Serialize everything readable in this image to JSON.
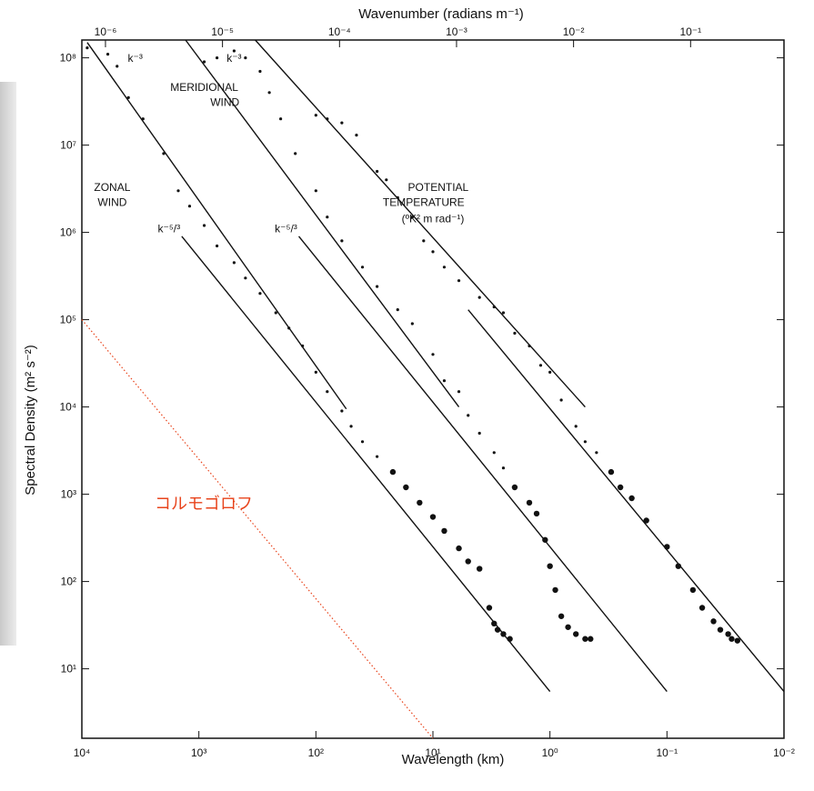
{
  "chart_data": {
    "type": "scatter",
    "title": "",
    "xlabel": "Wavelength (km)",
    "ylabel": "Spectral Density (m² s⁻²)",
    "x2label": "Wavenumber (radians m⁻¹)",
    "x_scale": "log",
    "x_direction": "decreasing",
    "xlim": [
      10000,
      0.01
    ],
    "y_scale": "log",
    "ylim": [
      1.6,
      160000000.0
    ],
    "x_ticks": [
      {
        "value": 10000,
        "label": "10⁴"
      },
      {
        "value": 1000,
        "label": "10³"
      },
      {
        "value": 100,
        "label": "10²"
      },
      {
        "value": 10,
        "label": "10¹"
      },
      {
        "value": 1,
        "label": "10⁰"
      },
      {
        "value": 0.1,
        "label": "10⁻¹"
      },
      {
        "value": 0.01,
        "label": "10⁻²"
      }
    ],
    "x2_ticks": [
      {
        "value": 1e-06,
        "label": "10⁻⁶"
      },
      {
        "value": 1e-05,
        "label": "10⁻⁵"
      },
      {
        "value": 0.0001,
        "label": "10⁻⁴"
      },
      {
        "value": 0.001,
        "label": "10⁻³"
      },
      {
        "value": 0.01,
        "label": "10⁻²"
      },
      {
        "value": 0.1,
        "label": "10⁻¹"
      }
    ],
    "y_ticks": [
      {
        "value": 10,
        "label": "10¹"
      },
      {
        "value": 100,
        "label": "10²"
      },
      {
        "value": 1000,
        "label": "10³"
      },
      {
        "value": 10000,
        "label": "10⁴"
      },
      {
        "value": 100000,
        "label": "10⁵"
      },
      {
        "value": 1000000,
        "label": "10⁶"
      },
      {
        "value": 10000000,
        "label": "10⁷"
      },
      {
        "value": 100000000,
        "label": "10⁸"
      }
    ],
    "series": [
      {
        "name": "ZONAL WIND",
        "points": [
          [
            9000,
            130000000.0
          ],
          [
            6000,
            110000000.0
          ],
          [
            5000,
            80000000.0
          ],
          [
            4000,
            35000000.0
          ],
          [
            3000,
            20000000.0
          ],
          [
            2000,
            8000000.0
          ],
          [
            1500,
            3000000.0
          ],
          [
            1200,
            2000000.0
          ],
          [
            900,
            1200000.0
          ],
          [
            700,
            700000.0
          ],
          [
            500,
            450000.0
          ],
          [
            400,
            300000.0
          ],
          [
            300,
            200000.0
          ],
          [
            220,
            120000.0
          ],
          [
            170,
            80000.0
          ],
          [
            130,
            50000.0
          ],
          [
            100,
            25000.0
          ],
          [
            80,
            15000.0
          ],
          [
            60,
            9000
          ],
          [
            50,
            6000
          ],
          [
            40,
            4000
          ],
          [
            30,
            2700
          ],
          [
            22,
            1800
          ],
          [
            17,
            1200
          ],
          [
            13,
            800
          ],
          [
            10,
            550
          ],
          [
            8,
            380
          ],
          [
            6,
            240
          ],
          [
            5,
            170
          ],
          [
            4,
            140
          ],
          [
            3.3,
            50
          ],
          [
            3,
            33
          ],
          [
            2.8,
            28
          ],
          [
            2.5,
            25
          ],
          [
            2.2,
            22
          ]
        ]
      },
      {
        "name": "MERIDIONAL WIND",
        "points": [
          [
            900,
            90000000.0
          ],
          [
            700,
            100000000.0
          ],
          [
            500,
            120000000.0
          ],
          [
            400,
            100000000.0
          ],
          [
            300,
            70000000.0
          ],
          [
            250,
            40000000.0
          ],
          [
            200,
            20000000.0
          ],
          [
            150,
            8000000.0
          ],
          [
            100,
            3000000.0
          ],
          [
            80,
            1500000.0
          ],
          [
            60,
            800000.0
          ],
          [
            40,
            400000.0
          ],
          [
            30,
            240000.0
          ],
          [
            20,
            130000.0
          ],
          [
            15,
            90000.0
          ],
          [
            10,
            40000.0
          ],
          [
            8,
            20000.0
          ],
          [
            6,
            15000.0
          ],
          [
            5,
            8000
          ],
          [
            4,
            5000
          ],
          [
            3,
            3000
          ],
          [
            2.5,
            2000
          ],
          [
            2,
            1200
          ],
          [
            1.5,
            800
          ],
          [
            1.3,
            600
          ],
          [
            1.1,
            300
          ],
          [
            1.0,
            150
          ],
          [
            0.9,
            80
          ],
          [
            0.8,
            40
          ],
          [
            0.7,
            30
          ],
          [
            0.6,
            25
          ],
          [
            0.5,
            22
          ],
          [
            0.45,
            22
          ]
        ]
      },
      {
        "name": "POTENTIAL TEMPERATURE",
        "points": [
          [
            100,
            22000000.0
          ],
          [
            80,
            20000000.0
          ],
          [
            60,
            18000000.0
          ],
          [
            45,
            13000000.0
          ],
          [
            30,
            5000000.0
          ],
          [
            25,
            4000000.0
          ],
          [
            20,
            2500000.0
          ],
          [
            15,
            1500000.0
          ],
          [
            12,
            800000.0
          ],
          [
            10,
            600000.0
          ],
          [
            8,
            400000.0
          ],
          [
            6,
            280000.0
          ],
          [
            4,
            180000.0
          ],
          [
            3,
            140000.0
          ],
          [
            2.5,
            120000.0
          ],
          [
            2,
            70000.0
          ],
          [
            1.5,
            50000.0
          ],
          [
            1.2,
            30000.0
          ],
          [
            1,
            25000.0
          ],
          [
            0.8,
            12000.0
          ],
          [
            0.6,
            6000
          ],
          [
            0.5,
            4000
          ],
          [
            0.4,
            3000
          ],
          [
            0.3,
            1800
          ],
          [
            0.25,
            1200
          ],
          [
            0.2,
            900
          ],
          [
            0.15,
            500
          ],
          [
            0.1,
            250
          ],
          [
            0.08,
            150
          ],
          [
            0.06,
            80
          ],
          [
            0.05,
            50
          ],
          [
            0.04,
            35
          ],
          [
            0.035,
            28
          ],
          [
            0.03,
            25
          ],
          [
            0.028,
            22
          ],
          [
            0.025,
            21
          ]
        ]
      }
    ],
    "reference_lines": [
      {
        "points": [
          [
            9000,
            150000000.0
          ],
          [
            55,
            9500
          ]
        ]
      },
      {
        "points": [
          [
            1400,
            900000.0
          ],
          [
            1,
            5.5
          ]
        ]
      },
      {
        "points": [
          [
            1300,
            160000000.0
          ],
          [
            6,
            10000.0
          ]
        ]
      },
      {
        "points": [
          [
            140,
            900000.0
          ],
          [
            0.1,
            5.5
          ]
        ]
      },
      {
        "points": [
          [
            330,
            160000000.0
          ],
          [
            0.5,
            10000.0
          ]
        ]
      },
      {
        "points": [
          [
            5,
            130000.0
          ],
          [
            0.01,
            5.5
          ]
        ]
      }
    ],
    "annotations": [
      {
        "text": "k⁻³",
        "x": 3500,
        "y": 90000000.0
      },
      {
        "text": "k⁻³",
        "x": 500,
        "y": 90000000.0
      },
      {
        "text": "MERIDIONAL",
        "x": 900,
        "y": 42000000.0
      },
      {
        "text": "WIND",
        "x": 600,
        "y": 28000000.0
      },
      {
        "text": "ZONAL",
        "x": 5500,
        "y": 3000000.0
      },
      {
        "text": "WIND",
        "x": 5500,
        "y": 2000000.0
      },
      {
        "text": "k⁻⁵/³",
        "x": 1800,
        "y": 1000000.0
      },
      {
        "text": "k⁻⁵/³",
        "x": 180,
        "y": 1000000.0
      },
      {
        "text": "POTENTIAL",
        "x": 9,
        "y": 3000000.0
      },
      {
        "text": "TEMPERATURE",
        "x": 12,
        "y": 2000000.0
      },
      {
        "text": "(ºK² m rad⁻¹)",
        "x": 10,
        "y": 1300000.0
      }
    ],
    "overlay": {
      "text": "コルモゴロフ",
      "color": "#e8441c",
      "line": {
        "points": [
          [
            10000,
            100000.0
          ],
          [
            10,
            1.6
          ]
        ],
        "color": "#e8441c",
        "style": "dotted"
      }
    }
  }
}
